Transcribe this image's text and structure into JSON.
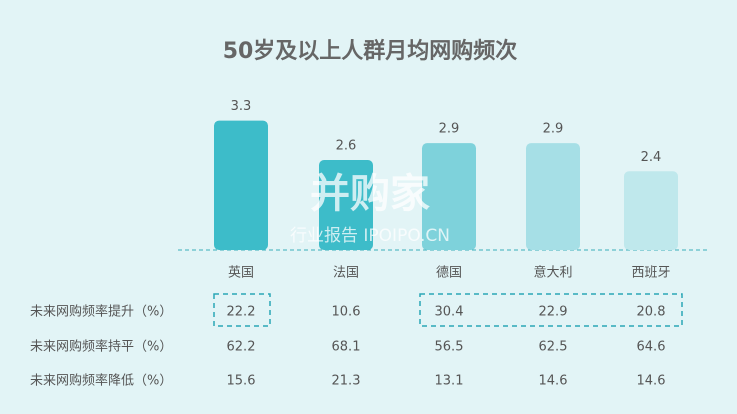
{
  "chart_data": {
    "type": "bar",
    "title": "50岁及以上人群月均网购频次",
    "categories": [
      "英国",
      "法国",
      "德国",
      "意大利",
      "西班牙"
    ],
    "values": [
      3.3,
      2.6,
      2.9,
      2.9,
      2.4
    ],
    "colors": [
      "#3dbcc9",
      "#3dbcc9",
      "#7ed2db",
      "#a6dfe6",
      "#bfe8ec"
    ],
    "ylim": [
      1,
      3.4
    ]
  },
  "table": {
    "rows": [
      {
        "label": "未来网购频率提升（%）",
        "values": [
          22.2,
          10.6,
          30.4,
          22.9,
          20.8
        ]
      },
      {
        "label": "未来网购频率持平（%）",
        "values": [
          62.2,
          68.1,
          56.5,
          62.5,
          64.6
        ]
      },
      {
        "label": "未来网购频率降低（%）",
        "values": [
          15.6,
          21.3,
          13.1,
          14.6,
          14.6
        ]
      }
    ]
  },
  "watermark": [
    "并购家",
    "行业报告 IPOIPO.CN"
  ]
}
